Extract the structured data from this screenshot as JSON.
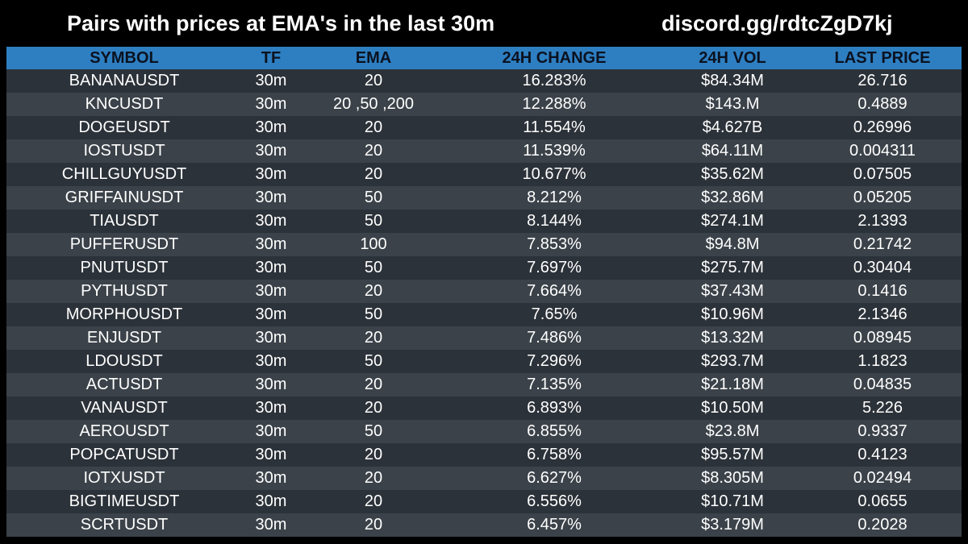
{
  "header": {
    "title": "Pairs with prices at EMA's in the last 30m",
    "invite": "discord.gg/rdtcZgD7kj"
  },
  "colors": {
    "background": "#000000",
    "header_row": "#2e7fc1",
    "row_dark": "#2c3239",
    "row_light": "#3b4249",
    "text": "#ffffff"
  },
  "table": {
    "columns": [
      "SYMBOL",
      "TF",
      "EMA",
      "24H CHANGE",
      "24H VOL",
      "LAST PRICE"
    ],
    "rows": [
      [
        "BANANAUSDT",
        "30m",
        "20",
        "16.283%",
        "$84.34M",
        "26.716"
      ],
      [
        "KNCUSDT",
        "30m",
        "20 ,50 ,200",
        "12.288%",
        "$143.M",
        "0.4889"
      ],
      [
        "DOGEUSDT",
        "30m",
        "20",
        "11.554%",
        "$4.627B",
        "0.26996"
      ],
      [
        "IOSTUSDT",
        "30m",
        "20",
        "11.539%",
        "$64.11M",
        "0.004311"
      ],
      [
        "CHILLGUYUSDT",
        "30m",
        "20",
        "10.677%",
        "$35.62M",
        "0.07505"
      ],
      [
        "GRIFFAINUSDT",
        "30m",
        "50",
        "8.212%",
        "$32.86M",
        "0.05205"
      ],
      [
        "TIAUSDT",
        "30m",
        "50",
        "8.144%",
        "$274.1M",
        "2.1393"
      ],
      [
        "PUFFERUSDT",
        "30m",
        "100",
        "7.853%",
        "$94.8M",
        "0.21742"
      ],
      [
        "PNUTUSDT",
        "30m",
        "50",
        "7.697%",
        "$275.7M",
        "0.30404"
      ],
      [
        "PYTHUSDT",
        "30m",
        "20",
        "7.664%",
        "$37.43M",
        "0.1416"
      ],
      [
        "MORPHOUSDT",
        "30m",
        "50",
        "7.65%",
        "$10.96M",
        "2.1346"
      ],
      [
        "ENJUSDT",
        "30m",
        "20",
        "7.486%",
        "$13.32M",
        "0.08945"
      ],
      [
        "LDOUSDT",
        "30m",
        "50",
        "7.296%",
        "$293.7M",
        "1.1823"
      ],
      [
        "ACTUSDT",
        "30m",
        "20",
        "7.135%",
        "$21.18M",
        "0.04835"
      ],
      [
        "VANAUSDT",
        "30m",
        "20",
        "6.893%",
        "$10.50M",
        "5.226"
      ],
      [
        "AEROUSDT",
        "30m",
        "50",
        "6.855%",
        "$23.8M",
        "0.9337"
      ],
      [
        "POPCATUSDT",
        "30m",
        "20",
        "6.758%",
        "$95.57M",
        "0.4123"
      ],
      [
        "IOTXUSDT",
        "30m",
        "20",
        "6.627%",
        "$8.305M",
        "0.02494"
      ],
      [
        "BIGTIMEUSDT",
        "30m",
        "20",
        "6.556%",
        "$10.71M",
        "0.0655"
      ],
      [
        "SCRTUSDT",
        "30m",
        "20",
        "6.457%",
        "$3.179M",
        "0.2028"
      ]
    ]
  }
}
